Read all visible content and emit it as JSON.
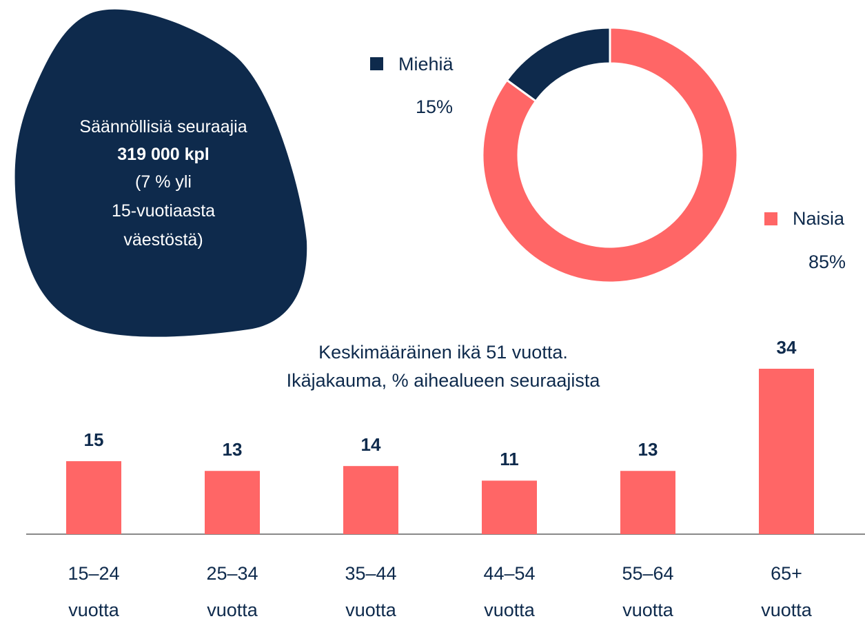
{
  "blob": {
    "lines": [
      "Säännöllisiä seuraajia",
      "319 000 kpl",
      "(7 % yli",
      "15-vuotiaasta",
      "väestöstä)"
    ]
  },
  "chart_data": [
    {
      "type": "donut",
      "categories": [
        "Miehiä",
        "Naisia"
      ],
      "values": [
        15,
        85
      ],
      "value_labels": [
        "15%",
        "85%"
      ],
      "colors": [
        "#0e2a4c",
        "#ff6666"
      ]
    },
    {
      "type": "bar",
      "title": "Keskimääräinen ikä 51 vuotta.",
      "subtitle": "Ikäjakauma, % aihealueen seuraajista",
      "categories": [
        "15–24 vuotta",
        "25–34 vuotta",
        "35–44 vuotta",
        "44–54 vuotta",
        "55–64 vuotta",
        "65+ vuotta"
      ],
      "values": [
        15,
        13,
        14,
        11,
        13,
        34
      ],
      "color": "#ff6666"
    }
  ]
}
